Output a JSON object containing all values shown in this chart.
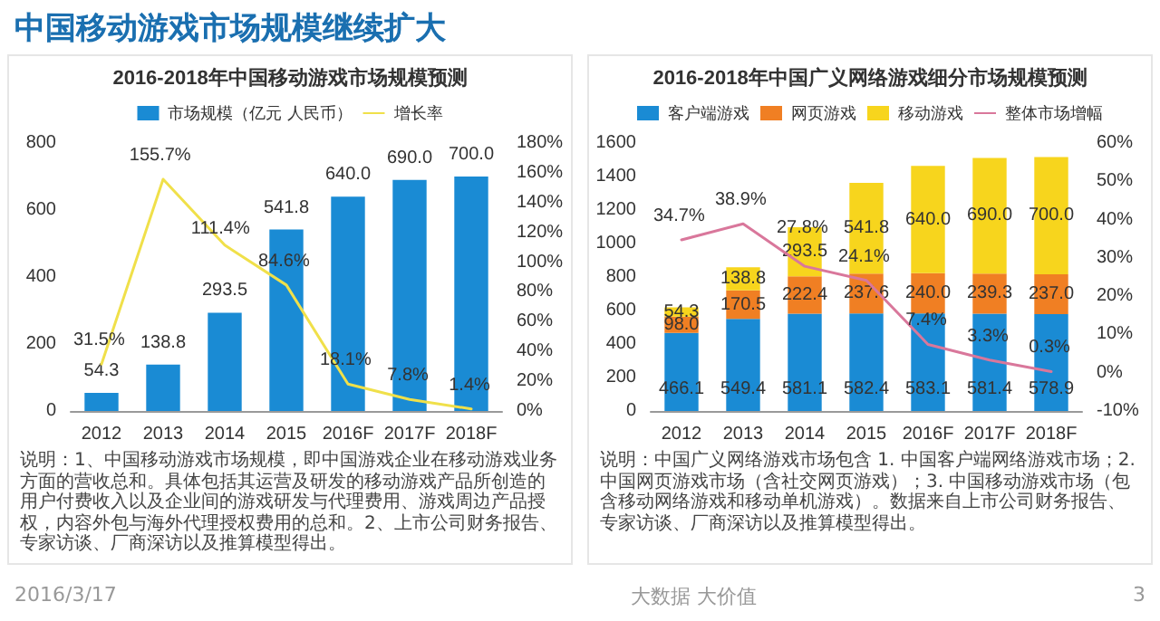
{
  "chart_data": [
    {
      "type": "bar",
      "title": "中国移动游戏市场规模继续扩大",
      "subtitle": "2016-2018年中国移动游戏市场规模预测",
      "categories": [
        "2012",
        "2013",
        "2014",
        "2015",
        "2016F",
        "2017F",
        "2018F"
      ],
      "series": [
        {
          "name": "市场规模（亿元 人民币）",
          "type": "bar",
          "color": "#1a8bd4",
          "values": [
            54.3,
            138.8,
            293.5,
            541.8,
            640.0,
            690.0,
            700.0
          ],
          "value_labels": [
            "54.3",
            "138.8",
            "293.5",
            "541.8",
            "640.0",
            "690.0",
            "700.0"
          ]
        },
        {
          "name": "增长率",
          "type": "line",
          "axis": "y2",
          "color": "#f0e04a",
          "values": [
            31.5,
            155.7,
            111.4,
            84.6,
            18.1,
            7.8,
            1.4
          ],
          "value_labels": [
            "31.5%",
            "155.7%",
            "111.4%",
            "84.6%",
            "18.1%",
            "7.8%",
            "1.4%"
          ]
        }
      ],
      "ylim": [
        0,
        800
      ],
      "yticks": [
        0,
        200,
        400,
        600,
        800
      ],
      "y2lim": [
        0,
        180
      ],
      "y2ticks": [
        {
          "value": 0,
          "label": "0%"
        },
        {
          "value": 20,
          "label": "20%"
        },
        {
          "value": 40,
          "label": "40%"
        },
        {
          "value": 60,
          "label": "60%"
        },
        {
          "value": 80,
          "label": "80%"
        },
        {
          "value": 100,
          "label": "100%"
        },
        {
          "value": 120,
          "label": "120%"
        },
        {
          "value": 140,
          "label": "140%"
        },
        {
          "value": 160,
          "label": "160%"
        },
        {
          "value": 180,
          "label": "180%"
        }
      ],
      "legend": "top",
      "grid": false,
      "marker": "none",
      "annotations": [
        "说明：1、中国移动游戏市场规模，即中国游戏企业在移动游戏业务方面的营收总和。具体包括其运营及研发的移动游戏产品所创造的用户付费收入以及企业间的游戏研发与代理费用、游戏周边产品授权，内容外包与海外代理授权费用的总和。2、上市公司财务报告、专家访谈、厂商深访以及推算模型得出。",
        "2016/3/17"
      ]
    },
    {
      "type": "bar",
      "title": "2016-2018年中国广义网络游戏细分市场规模预测",
      "categories": [
        "2012",
        "2013",
        "2014",
        "2015",
        "2016F",
        "2017F",
        "2018F"
      ],
      "stacked": true,
      "series": [
        {
          "name": "客户端游戏",
          "type": "bar",
          "color": "#1a8bd4",
          "values": [
            466.1,
            549.4,
            581.1,
            582.4,
            583.1,
            581.4,
            578.9
          ],
          "value_labels": [
            "466.1",
            "549.4",
            "581.1",
            "582.4",
            "583.1",
            "581.4",
            "578.9"
          ]
        },
        {
          "name": "网页游戏",
          "type": "bar",
          "color": "#f07f23",
          "values": [
            98.0,
            170.5,
            222.4,
            237.6,
            240.0,
            239.3,
            237.0
          ],
          "value_labels": [
            "98.0",
            "170.5",
            "222.4",
            "237.6",
            "240.0",
            "239.3",
            "237.0"
          ]
        },
        {
          "name": "移动游戏",
          "type": "bar",
          "color": "#f7d51d",
          "values": [
            54.3,
            138.8,
            293.5,
            541.8,
            640.0,
            690.0,
            700.0
          ],
          "value_labels": [
            "54.3",
            "138.8",
            "293.5",
            "541.8",
            "640.0",
            "690.0",
            "700.0"
          ]
        },
        {
          "name": "整体市场增幅",
          "type": "line",
          "axis": "y2",
          "color": "#d9779b",
          "values": [
            34.7,
            38.9,
            27.8,
            24.1,
            7.4,
            3.3,
            0.3
          ],
          "value_labels": [
            "34.7%",
            "38.9%",
            "27.8%",
            "24.1%",
            "7.4%",
            "3.3%",
            "0.3%"
          ]
        }
      ],
      "ylim": [
        0,
        1600
      ],
      "yticks": [
        0,
        200,
        400,
        600,
        800,
        1000,
        1200,
        1400,
        1600
      ],
      "y2lim": [
        -10,
        60
      ],
      "y2ticks": [
        {
          "value": -10,
          "label": "-10%"
        },
        {
          "value": 0,
          "label": "0%"
        },
        {
          "value": 10,
          "label": "10%"
        },
        {
          "value": 20,
          "label": "20%"
        },
        {
          "value": 30,
          "label": "30%"
        },
        {
          "value": 40,
          "label": "40%"
        },
        {
          "value": 50,
          "label": "50%"
        },
        {
          "value": 60,
          "label": "60%"
        }
      ],
      "legend": "top",
      "grid": false,
      "marker": "none",
      "annotations": [
        "说明：中国广义网络游戏市场包含 1. 中国客户端网络游戏市场；2. 中国网页游戏市场（含社交网页游戏）；3. 中国移动游戏市场（包含移动网络游戏和移动单机游戏）。数据来自上市公司财务报告、专家访谈、厂商深访以及推算模型得出。",
        "大数据 大价值",
        "3"
      ]
    }
  ]
}
